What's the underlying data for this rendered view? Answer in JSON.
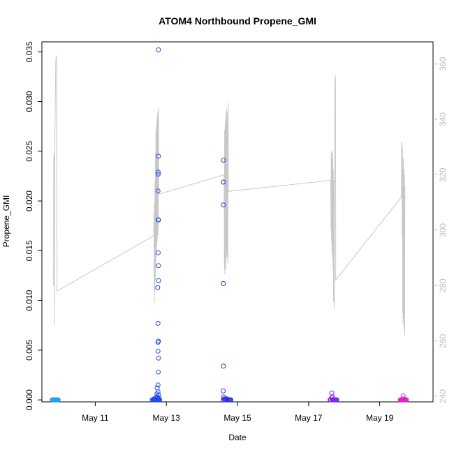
{
  "chart_data": {
    "type": "scatter",
    "title": "ATOM4 Northbound Propene_GMI",
    "xlabel": "Date",
    "ylabel": "Propene_GMI",
    "x_axis": {
      "type": "date",
      "range": [
        "2018-05-09T12:00",
        "2018-05-20T12:00"
      ],
      "ticks": [
        {
          "value": "2018-05-11",
          "label": "May 11"
        },
        {
          "value": "2018-05-13",
          "label": "May 13"
        },
        {
          "value": "2018-05-15",
          "label": "May 15"
        },
        {
          "value": "2018-05-17",
          "label": "May 17"
        },
        {
          "value": "2018-05-19",
          "label": "May 19"
        }
      ]
    },
    "y_axis_left": {
      "range": [
        -0.0002,
        0.036
      ],
      "ticks": [
        {
          "value": 0.0,
          "label": "0.000"
        },
        {
          "value": 0.005,
          "label": "0.005"
        },
        {
          "value": 0.01,
          "label": "0.010"
        },
        {
          "value": 0.015,
          "label": "0.015"
        },
        {
          "value": 0.02,
          "label": "0.020"
        },
        {
          "value": 0.025,
          "label": "0.025"
        },
        {
          "value": 0.03,
          "label": "0.030"
        },
        {
          "value": 0.035,
          "label": "0.035"
        }
      ]
    },
    "y_axis_right": {
      "range": [
        238,
        368
      ],
      "color": "#bdbdbd",
      "ticks": [
        {
          "value": 240,
          "label": "240"
        },
        {
          "value": 260,
          "label": "260"
        },
        {
          "value": 280,
          "label": "280"
        },
        {
          "value": 300,
          "label": "300"
        },
        {
          "value": 320,
          "label": "320"
        },
        {
          "value": 340,
          "label": "340"
        },
        {
          "value": 360,
          "label": "360"
        }
      ]
    },
    "grid": false,
    "legend": "none",
    "line_series": {
      "axis": "right",
      "color": "#c8c8c8",
      "points": [
        [
          "2018-05-09T19:50",
          280
        ],
        [
          "2018-05-09T20:00",
          327
        ],
        [
          "2018-05-09T20:10",
          300
        ],
        [
          "2018-05-09T20:20",
          328
        ],
        [
          "2018-05-09T20:30",
          266
        ],
        [
          "2018-05-09T20:40",
          330
        ],
        [
          "2018-05-09T21:00",
          345
        ],
        [
          "2018-05-09T21:20",
          360
        ],
        [
          "2018-05-09T21:40",
          363
        ],
        [
          "2018-05-09T22:00",
          360
        ],
        [
          "2018-05-09T22:10",
          278
        ],
        [
          "2018-05-12T15:30",
          298
        ],
        [
          "2018-05-12T15:40",
          306
        ],
        [
          "2018-05-12T15:50",
          274
        ],
        [
          "2018-05-12T16:00",
          310
        ],
        [
          "2018-05-12T16:10",
          278
        ],
        [
          "2018-05-12T16:20",
          318
        ],
        [
          "2018-05-12T16:30",
          282
        ],
        [
          "2018-05-12T16:40",
          328
        ],
        [
          "2018-05-12T16:50",
          286
        ],
        [
          "2018-05-12T17:00",
          336
        ],
        [
          "2018-05-12T17:10",
          290
        ],
        [
          "2018-05-12T17:20",
          338
        ],
        [
          "2018-05-12T17:30",
          294
        ],
        [
          "2018-05-12T17:40",
          340
        ],
        [
          "2018-05-12T17:50",
          296
        ],
        [
          "2018-05-12T18:00",
          342
        ],
        [
          "2018-05-12T18:10",
          298
        ],
        [
          "2018-05-12T18:20",
          343
        ],
        [
          "2018-05-12T18:30",
          300
        ],
        [
          "2018-05-12T18:40",
          344
        ],
        [
          "2018-05-12T18:50",
          313
        ],
        [
          "2018-05-14T15:00",
          320
        ],
        [
          "2018-05-14T15:10",
          286
        ],
        [
          "2018-05-14T15:20",
          336
        ],
        [
          "2018-05-14T15:30",
          284
        ],
        [
          "2018-05-14T15:40",
          338
        ],
        [
          "2018-05-14T15:50",
          286
        ],
        [
          "2018-05-14T16:00",
          340
        ],
        [
          "2018-05-14T16:10",
          288
        ],
        [
          "2018-05-14T16:20",
          342
        ],
        [
          "2018-05-14T16:30",
          290
        ],
        [
          "2018-05-14T16:40",
          344
        ],
        [
          "2018-05-14T16:50",
          292
        ],
        [
          "2018-05-14T17:00",
          343
        ],
        [
          "2018-05-14T17:10",
          290
        ],
        [
          "2018-05-14T17:20",
          340
        ],
        [
          "2018-05-14T17:30",
          288
        ],
        [
          "2018-05-14T17:40",
          346
        ],
        [
          "2018-05-14T17:50",
          314
        ],
        [
          "2018-05-17T15:00",
          318
        ],
        [
          "2018-05-17T15:10",
          300
        ],
        [
          "2018-05-17T15:20",
          328
        ],
        [
          "2018-05-17T15:30",
          296
        ],
        [
          "2018-05-17T15:40",
          328
        ],
        [
          "2018-05-17T15:50",
          292
        ],
        [
          "2018-05-17T16:00",
          329
        ],
        [
          "2018-05-17T16:10",
          290
        ],
        [
          "2018-05-17T16:20",
          326
        ],
        [
          "2018-05-17T16:30",
          286
        ],
        [
          "2018-05-17T16:40",
          322
        ],
        [
          "2018-05-17T16:50",
          274
        ],
        [
          "2018-05-17T17:10",
          318
        ],
        [
          "2018-05-17T17:20",
          272
        ],
        [
          "2018-05-17T17:30",
          334
        ],
        [
          "2018-05-17T17:40",
          345
        ],
        [
          "2018-05-17T17:50",
          351
        ],
        [
          "2018-05-17T18:00",
          356
        ],
        [
          "2018-05-17T18:10",
          353
        ],
        [
          "2018-05-17T18:20",
          282
        ],
        [
          "2018-05-19T14:40",
          312
        ],
        [
          "2018-05-19T14:50",
          332
        ],
        [
          "2018-05-19T15:00",
          328
        ],
        [
          "2018-05-19T15:10",
          298
        ],
        [
          "2018-05-19T15:20",
          330
        ],
        [
          "2018-05-19T15:30",
          270
        ],
        [
          "2018-05-19T15:40",
          322
        ],
        [
          "2018-05-19T15:50",
          266
        ],
        [
          "2018-05-19T16:00",
          326
        ],
        [
          "2018-05-19T16:10",
          268
        ],
        [
          "2018-05-19T16:20",
          322
        ],
        [
          "2018-05-19T16:30",
          264
        ],
        [
          "2018-05-19T16:40",
          320
        ],
        [
          "2018-05-19T16:50",
          262
        ],
        [
          "2018-05-19T17:00",
          316
        ]
      ]
    },
    "scatter_groups": [
      {
        "color": "#1a9fe8",
        "points": [
          [
            "2018-05-09T19:00",
            0.0
          ],
          [
            "2018-05-09T19:30",
            0.0
          ],
          [
            "2018-05-09T20:00",
            0.0
          ],
          [
            "2018-05-09T20:30",
            0.0
          ],
          [
            "2018-05-09T21:00",
            0.0
          ],
          [
            "2018-05-09T21:30",
            0.0
          ],
          [
            "2018-05-09T22:00",
            0.0
          ],
          [
            "2018-05-09T22:30",
            0.0
          ],
          [
            "2018-05-09T23:00",
            0.0
          ]
        ]
      },
      {
        "color": "#1f4be6",
        "points": [
          [
            "2018-05-12T14:30",
            0.0
          ],
          [
            "2018-05-12T15:00",
            0.0
          ],
          [
            "2018-05-12T15:30",
            0.0001
          ],
          [
            "2018-05-12T16:00",
            0.0
          ],
          [
            "2018-05-12T16:30",
            0.0001
          ],
          [
            "2018-05-12T17:00",
            0.0002
          ],
          [
            "2018-05-12T17:30",
            0.0003
          ],
          [
            "2018-05-12T18:00",
            0.0002
          ],
          [
            "2018-05-12T18:30",
            0.0001
          ],
          [
            "2018-05-12T19:00",
            0.0002
          ],
          [
            "2018-05-12T19:30",
            0.0
          ],
          [
            "2018-05-12T15:45",
            0.0
          ],
          [
            "2018-05-12T16:15",
            0.0
          ],
          [
            "2018-05-12T16:45",
            0.0
          ],
          [
            "2018-05-12T17:15",
            0.0
          ],
          [
            "2018-05-12T17:45",
            0.0
          ],
          [
            "2018-05-12T18:15",
            0.0
          ],
          [
            "2018-05-12T18:45",
            0.0
          ],
          [
            "2018-05-12T19:15",
            0.0
          ],
          [
            "2018-05-12T17:40",
            0.0006
          ],
          [
            "2018-05-12T17:50",
            0.0012
          ],
          [
            "2018-05-12T18:20",
            0.0008
          ],
          [
            "2018-05-12T18:50",
            0.0005
          ],
          [
            "2018-05-12T18:40",
            0.0352
          ],
          [
            "2018-05-12T18:40",
            0.0245
          ],
          [
            "2018-05-12T18:30",
            0.0229
          ],
          [
            "2018-05-12T18:30",
            0.0227
          ],
          [
            "2018-05-12T18:20",
            0.021
          ],
          [
            "2018-05-12T18:30",
            0.0181
          ],
          [
            "2018-05-12T18:40",
            0.0181
          ],
          [
            "2018-05-12T18:30",
            0.0148
          ],
          [
            "2018-05-12T18:40",
            0.0135
          ],
          [
            "2018-05-12T18:40",
            0.012
          ],
          [
            "2018-05-12T18:10",
            0.0113
          ],
          [
            "2018-05-12T18:20",
            0.0077
          ],
          [
            "2018-05-12T18:40",
            0.0059
          ],
          [
            "2018-05-12T18:20",
            0.0058
          ],
          [
            "2018-05-12T18:20",
            0.0049
          ],
          [
            "2018-05-12T18:40",
            0.0042
          ],
          [
            "2018-05-12T18:30",
            0.0028
          ],
          [
            "2018-05-12T18:20",
            0.0015
          ]
        ]
      },
      {
        "color": "#2f2ee0",
        "points": [
          [
            "2018-05-14T14:30",
            0.0
          ],
          [
            "2018-05-14T15:00",
            0.0001
          ],
          [
            "2018-05-14T15:30",
            0.0
          ],
          [
            "2018-05-14T16:00",
            0.0001
          ],
          [
            "2018-05-14T16:30",
            0.0
          ],
          [
            "2018-05-14T17:00",
            0.0001
          ],
          [
            "2018-05-14T17:30",
            0.0
          ],
          [
            "2018-05-14T18:00",
            0.0
          ],
          [
            "2018-05-14T18:30",
            0.0
          ],
          [
            "2018-05-14T19:00",
            0.0
          ],
          [
            "2018-05-14T19:30",
            0.0
          ],
          [
            "2018-05-14T14:30",
            0.0241
          ],
          [
            "2018-05-14T14:30",
            0.0219
          ],
          [
            "2018-05-14T14:30",
            0.0196
          ],
          [
            "2018-05-14T14:30",
            0.0117
          ],
          [
            "2018-05-14T14:30",
            0.0034
          ],
          [
            "2018-05-14T14:20",
            0.0009
          ],
          [
            "2018-05-14T14:40",
            0.0003
          ]
        ]
      },
      {
        "color": "#7d1ee8",
        "points": [
          [
            "2018-05-17T14:30",
            0.0
          ],
          [
            "2018-05-17T15:00",
            0.0
          ],
          [
            "2018-05-17T15:30",
            0.0002
          ],
          [
            "2018-05-17T16:00",
            0.0
          ],
          [
            "2018-05-17T16:30",
            0.0
          ],
          [
            "2018-05-17T17:00",
            0.0
          ],
          [
            "2018-05-17T17:30",
            0.0
          ],
          [
            "2018-05-17T18:00",
            0.0
          ],
          [
            "2018-05-17T18:30",
            0.0
          ],
          [
            "2018-05-17T19:00",
            0.0
          ],
          [
            "2018-05-17T15:40",
            0.0007
          ],
          [
            "2018-05-17T16:10",
            0.0003
          ]
        ]
      },
      {
        "color": "#e01ec9",
        "points": [
          [
            "2018-05-19T14:00",
            0.0
          ],
          [
            "2018-05-19T14:30",
            0.0
          ],
          [
            "2018-05-19T15:00",
            0.0
          ],
          [
            "2018-05-19T15:30",
            0.0
          ],
          [
            "2018-05-19T16:00",
            0.0
          ],
          [
            "2018-05-19T16:30",
            0.0
          ],
          [
            "2018-05-19T17:00",
            0.0
          ],
          [
            "2018-05-19T17:30",
            0.0
          ],
          [
            "2018-05-19T18:00",
            0.0
          ],
          [
            "2018-05-19T15:50",
            0.0004
          ],
          [
            "2018-05-19T16:20",
            0.0001
          ]
        ]
      }
    ]
  }
}
